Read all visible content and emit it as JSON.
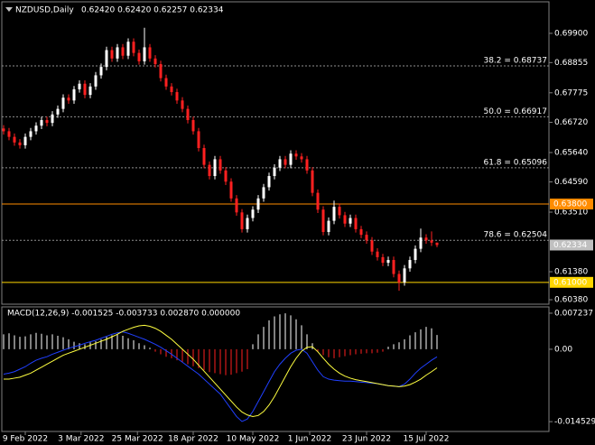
{
  "chart_data": [
    {
      "type": "candlestick",
      "symbol": "NZDUSD,Daily",
      "ohlc_text": "0.62420 0.62420 0.62257 0.62334",
      "bull_color": "#ffffff",
      "bear_color": "#ff2020",
      "ylim": [
        0.6022,
        0.7093
      ],
      "yticks": [
        {
          "value": 0.699,
          "label": "0.69900"
        },
        {
          "value": 0.68855,
          "label": "0.68855"
        },
        {
          "value": 0.67775,
          "label": "0.67775"
        },
        {
          "value": 0.6672,
          "label": "0.66720"
        },
        {
          "value": 0.6564,
          "label": "0.65640"
        },
        {
          "value": 0.6459,
          "label": "0.64590"
        },
        {
          "value": 0.6351,
          "label": "0.63510"
        },
        {
          "value": 0.6138,
          "label": "0.61380"
        },
        {
          "value": 0.6038,
          "label": "0.60380"
        }
      ],
      "levels": [
        {
          "value": 0.68737,
          "label": "38.2 = 0.68737"
        },
        {
          "value": 0.66917,
          "label": "50.0 = 0.66917"
        },
        {
          "value": 0.65096,
          "label": "61.8 = 0.65096"
        },
        {
          "value": 0.62504,
          "label": "78.6 = 0.62504"
        }
      ],
      "hlines": [
        {
          "value": 0.638,
          "label": "0.63800",
          "color": "#ff8c00"
        },
        {
          "value": 0.61,
          "label": "0.61000",
          "color": "#ffd700"
        }
      ],
      "last": {
        "value": 0.62334,
        "label": "0.62334",
        "color": "#c0c0c0"
      },
      "candles": [
        [
          0.665,
          0.6662,
          0.6628,
          0.664
        ],
        [
          0.664,
          0.6652,
          0.6608,
          0.662
        ],
        [
          0.662,
          0.6632,
          0.6588,
          0.66
        ],
        [
          0.66,
          0.6612,
          0.6578,
          0.659
        ],
        [
          0.659,
          0.6632,
          0.6578,
          0.662
        ],
        [
          0.662,
          0.6652,
          0.6608,
          0.664
        ],
        [
          0.664,
          0.6672,
          0.6628,
          0.666
        ],
        [
          0.666,
          0.6692,
          0.6648,
          0.668
        ],
        [
          0.668,
          0.6692,
          0.6658,
          0.667
        ],
        [
          0.667,
          0.6712,
          0.6658,
          0.67
        ],
        [
          0.67,
          0.6732,
          0.6688,
          0.672
        ],
        [
          0.672,
          0.6772,
          0.6708,
          0.676
        ],
        [
          0.676,
          0.6772,
          0.6738,
          0.675
        ],
        [
          0.675,
          0.6802,
          0.6738,
          0.679
        ],
        [
          0.679,
          0.6822,
          0.6778,
          0.681
        ],
        [
          0.681,
          0.6822,
          0.6758,
          0.677
        ],
        [
          0.677,
          0.6812,
          0.6758,
          0.68
        ],
        [
          0.68,
          0.6852,
          0.6788,
          0.684
        ],
        [
          0.684,
          0.6882,
          0.6828,
          0.687
        ],
        [
          0.687,
          0.6942,
          0.6858,
          0.693
        ],
        [
          0.693,
          0.6942,
          0.6888,
          0.69
        ],
        [
          0.69,
          0.6952,
          0.6888,
          0.694
        ],
        [
          0.694,
          0.6952,
          0.6898,
          0.691
        ],
        [
          0.691,
          0.6972,
          0.6898,
          0.696
        ],
        [
          0.696,
          0.6972,
          0.6908,
          0.692
        ],
        [
          0.692,
          0.6932,
          0.6878,
          0.689
        ],
        [
          0.689,
          0.701,
          0.6878,
          0.694
        ],
        [
          0.694,
          0.6952,
          0.6888,
          0.69
        ],
        [
          0.69,
          0.6912,
          0.6868,
          0.688
        ],
        [
          0.688,
          0.6892,
          0.6818,
          0.683
        ],
        [
          0.683,
          0.6842,
          0.6788,
          0.68
        ],
        [
          0.68,
          0.6812,
          0.6768,
          0.678
        ],
        [
          0.678,
          0.6792,
          0.6738,
          0.675
        ],
        [
          0.675,
          0.6762,
          0.6708,
          0.672
        ],
        [
          0.672,
          0.6732,
          0.6668,
          0.668
        ],
        [
          0.668,
          0.6692,
          0.6628,
          0.664
        ],
        [
          0.664,
          0.6652,
          0.6568,
          0.658
        ],
        [
          0.658,
          0.6592,
          0.6508,
          0.652
        ],
        [
          0.652,
          0.6532,
          0.6468,
          0.648
        ],
        [
          0.648,
          0.6552,
          0.6468,
          0.654
        ],
        [
          0.654,
          0.6552,
          0.6488,
          0.65
        ],
        [
          0.65,
          0.6512,
          0.6448,
          0.646
        ],
        [
          0.646,
          0.6472,
          0.6388,
          0.64
        ],
        [
          0.64,
          0.6412,
          0.6338,
          0.635
        ],
        [
          0.635,
          0.6362,
          0.6278,
          0.629
        ],
        [
          0.629,
          0.6342,
          0.6278,
          0.633
        ],
        [
          0.633,
          0.6372,
          0.6318,
          0.636
        ],
        [
          0.636,
          0.6412,
          0.6348,
          0.64
        ],
        [
          0.64,
          0.6452,
          0.6388,
          0.644
        ],
        [
          0.644,
          0.6492,
          0.6428,
          0.648
        ],
        [
          0.648,
          0.6522,
          0.6468,
          0.651
        ],
        [
          0.651,
          0.6552,
          0.6498,
          0.654
        ],
        [
          0.654,
          0.6552,
          0.6508,
          0.652
        ],
        [
          0.652,
          0.6572,
          0.6508,
          0.656
        ],
        [
          0.656,
          0.6572,
          0.6538,
          0.655
        ],
        [
          0.655,
          0.6562,
          0.6528,
          0.654
        ],
        [
          0.654,
          0.6552,
          0.6488,
          0.65
        ],
        [
          0.65,
          0.6512,
          0.6408,
          0.642
        ],
        [
          0.642,
          0.6432,
          0.6348,
          0.636
        ],
        [
          0.636,
          0.6372,
          0.6268,
          0.628
        ],
        [
          0.628,
          0.6332,
          0.6268,
          0.632
        ],
        [
          0.632,
          0.6392,
          0.6308,
          0.637
        ],
        [
          0.637,
          0.6382,
          0.6328,
          0.634
        ],
        [
          0.634,
          0.6352,
          0.6298,
          0.631
        ],
        [
          0.631,
          0.6342,
          0.6298,
          0.633
        ],
        [
          0.633,
          0.6342,
          0.6278,
          0.629
        ],
        [
          0.629,
          0.6302,
          0.6258,
          0.627
        ],
        [
          0.627,
          0.6282,
          0.6238,
          0.625
        ],
        [
          0.625,
          0.6262,
          0.6198,
          0.621
        ],
        [
          0.621,
          0.6222,
          0.6178,
          0.619
        ],
        [
          0.619,
          0.6202,
          0.6158,
          0.617
        ],
        [
          0.617,
          0.6192,
          0.6158,
          0.618
        ],
        [
          0.618,
          0.6192,
          0.6118,
          0.613
        ],
        [
          0.613,
          0.6142,
          0.607,
          0.61
        ],
        [
          0.61,
          0.6162,
          0.6088,
          0.615
        ],
        [
          0.615,
          0.6192,
          0.6138,
          0.618
        ],
        [
          0.618,
          0.6232,
          0.6168,
          0.622
        ],
        [
          0.622,
          0.6292,
          0.6208,
          0.626
        ],
        [
          0.626,
          0.6272,
          0.6238,
          0.625
        ],
        [
          0.625,
          0.6282,
          0.623,
          0.6242
        ],
        [
          0.6242,
          0.6242,
          0.62257,
          0.62334
        ]
      ]
    },
    {
      "type": "macd",
      "title": "MACD(12,26,9) -0.001525 -0.003733 0.002870 0.000000",
      "ylim": [
        -0.0165,
        0.0085
      ],
      "yticks": [
        0.007237,
        {
          "value": 0,
          "label": "0.00"
        },
        -0.014529
      ],
      "xticks": [
        {
          "value": 4,
          "label": "9 Feb 2022"
        },
        {
          "value": 14.3,
          "label": "3 Mar 2022"
        },
        {
          "value": 24.7,
          "label": "25 Mar 2022"
        },
        {
          "value": 35,
          "label": "18 Apr 2022"
        },
        {
          "value": 46,
          "label": "10 May 2022"
        },
        {
          "value": 56.5,
          "label": "1 Jun 2022"
        },
        {
          "value": 67,
          "label": "23 Jun 2022"
        },
        {
          "value": 78,
          "label": "15 Jul 2022"
        }
      ],
      "histogram": {
        "up_color": "#ffffff",
        "down_color": "#ff2020",
        "values": [
          0.003,
          0.0032,
          0.0028,
          0.0025,
          0.0026,
          0.003,
          0.0033,
          0.0031,
          0.0028,
          0.003,
          0.0027,
          0.0024,
          0.002,
          0.0015,
          0.0012,
          0.001,
          0.0014,
          0.0016,
          0.002,
          0.0025,
          0.0028,
          0.003,
          0.0027,
          0.0022,
          0.0018,
          0.0012,
          0.0008,
          0.0003,
          -0.0005,
          -0.001,
          -0.0015,
          -0.0018,
          -0.0022,
          -0.0026,
          -0.003,
          -0.0034,
          -0.0038,
          -0.0042,
          -0.0046,
          -0.0048,
          -0.005,
          -0.0052,
          -0.0051,
          -0.0048,
          -0.0045,
          -0.004,
          0.001,
          0.003,
          0.0045,
          0.0058,
          0.0066,
          0.007,
          0.0072,
          0.0068,
          0.006,
          0.0048,
          0.003,
          0.0012,
          -0.0005,
          -0.0012,
          -0.0016,
          -0.0018,
          -0.0016,
          -0.0014,
          -0.0012,
          -0.001,
          -0.0009,
          -0.0008,
          -0.0008,
          -0.0007,
          -0.0005,
          0.0005,
          0.001,
          0.0014,
          0.002,
          0.0028,
          0.0034,
          0.004,
          0.0045,
          0.0042,
          0.00287
        ]
      },
      "series": [
        {
          "color": "#2040ff",
          "values": [
            -0.005,
            -0.0048,
            -0.0045,
            -0.004,
            -0.0035,
            -0.0028,
            -0.0022,
            -0.0018,
            -0.0015,
            -0.001,
            -0.0006,
            -0.0002,
            0.0002,
            0.0005,
            0.0008,
            0.0012,
            0.0015,
            0.0018,
            0.0022,
            0.0026,
            0.003,
            0.0033,
            0.0035,
            0.0032,
            0.0028,
            0.0024,
            0.002,
            0.0015,
            0.001,
            0.0004,
            -0.0003,
            -0.001,
            -0.0018,
            -0.0026,
            -0.0034,
            -0.0042,
            -0.005,
            -0.006,
            -0.007,
            -0.008,
            -0.009,
            -0.0105,
            -0.012,
            -0.0135,
            -0.0145,
            -0.014,
            -0.0125,
            -0.0105,
            -0.0085,
            -0.0065,
            -0.0045,
            -0.003,
            -0.0018,
            -0.0008,
            -0.0002,
            0,
            -0.0008,
            -0.0025,
            -0.0042,
            -0.0055,
            -0.006,
            -0.0062,
            -0.0063,
            -0.0064,
            -0.0064,
            -0.0065,
            -0.0066,
            -0.0067,
            -0.0068,
            -0.0069,
            -0.0071,
            -0.0073,
            -0.0074,
            -0.0075,
            -0.007,
            -0.006,
            -0.0048,
            -0.0038,
            -0.003,
            -0.0022,
            -0.001525
          ]
        },
        {
          "color": "#ffff40",
          "values": [
            -0.006,
            -0.006,
            -0.0058,
            -0.0056,
            -0.0052,
            -0.0048,
            -0.0042,
            -0.0036,
            -0.003,
            -0.0024,
            -0.0018,
            -0.0012,
            -0.0008,
            -0.0004,
            0,
            0.0004,
            0.0008,
            0.0012,
            0.0016,
            0.002,
            0.0025,
            0.003,
            0.0036,
            0.004,
            0.0044,
            0.0047,
            0.0048,
            0.0046,
            0.0042,
            0.0036,
            0.0028,
            0.002,
            0.001,
            0,
            -0.001,
            -0.002,
            -0.0032,
            -0.0044,
            -0.0056,
            -0.0068,
            -0.008,
            -0.0092,
            -0.0104,
            -0.0116,
            -0.0126,
            -0.0132,
            -0.0135,
            -0.0133,
            -0.0125,
            -0.0112,
            -0.0095,
            -0.0075,
            -0.0055,
            -0.0035,
            -0.0018,
            -0.0004,
            0.0004,
            0.0005,
            -0.0005,
            -0.0018,
            -0.003,
            -0.004,
            -0.0048,
            -0.0054,
            -0.0058,
            -0.0061,
            -0.0063,
            -0.0065,
            -0.0067,
            -0.0069,
            -0.0071,
            -0.0073,
            -0.0074,
            -0.0075,
            -0.0074,
            -0.0071,
            -0.0066,
            -0.006,
            -0.0052,
            -0.0045,
            -0.003733
          ]
        }
      ]
    }
  ]
}
